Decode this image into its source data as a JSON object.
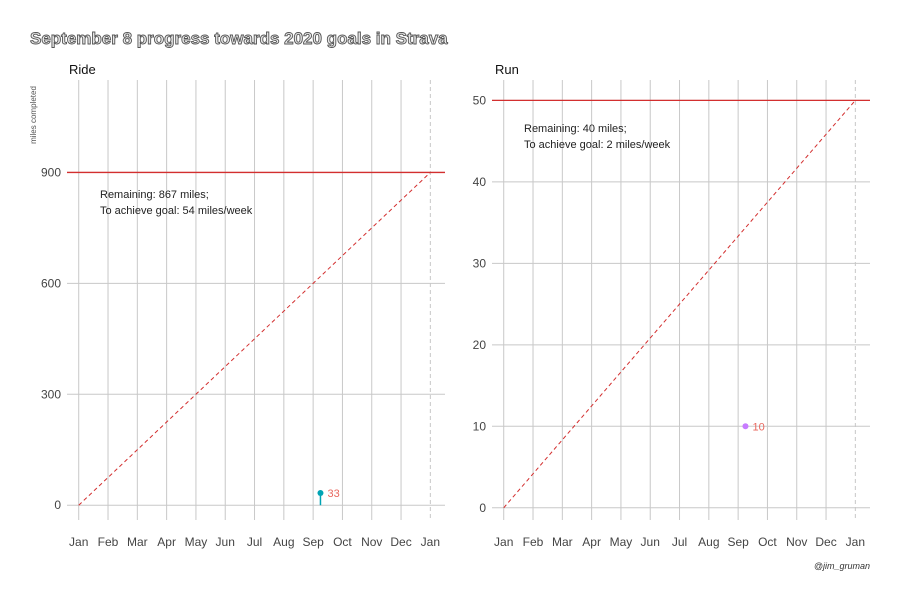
{
  "title": "September  8 progress towards 2020 goals in Strava",
  "caption": "@jim_gruman",
  "colors": {
    "goal_line": "#d32f2f",
    "ride_point": "#00a3b4",
    "run_point": "#c77cff",
    "point_label": "#e8675e",
    "grid": "#c8c8c8"
  },
  "chart_data": [
    {
      "type": "line",
      "panel_title": "Ride",
      "ylabel": "miles completed",
      "xlabel": "",
      "x_ticks": [
        "Jan",
        "Feb",
        "Mar",
        "Apr",
        "May",
        "Jun",
        "Jul",
        "Aug",
        "Sep",
        "Oct",
        "Nov",
        "Dec",
        "Jan"
      ],
      "y_ticks": [
        0,
        300,
        600,
        900
      ],
      "ylim": [
        -40,
        1150
      ],
      "xlim": [
        -0.4,
        12.5
      ],
      "goal": 900,
      "target_line": {
        "x": [
          0,
          12
        ],
        "y": [
          0,
          900
        ]
      },
      "series": [
        {
          "x": [
            8.25,
            8.25
          ],
          "y": [
            0,
            33
          ]
        }
      ],
      "point": {
        "x": 8.25,
        "y": 33,
        "label": "33"
      },
      "annotation": [
        "Remaining: 867 miles;",
        "To achieve goal: 54 miles/week"
      ],
      "grid": true
    },
    {
      "type": "line",
      "panel_title": "Run",
      "ylabel": "",
      "xlabel": "",
      "x_ticks": [
        "Jan",
        "Feb",
        "Mar",
        "Apr",
        "May",
        "Jun",
        "Jul",
        "Aug",
        "Sep",
        "Oct",
        "Nov",
        "Dec",
        "Jan"
      ],
      "y_ticks": [
        0,
        10,
        20,
        30,
        40,
        50
      ],
      "ylim": [
        -1.5,
        52.5
      ],
      "xlim": [
        -0.4,
        12.5
      ],
      "goal": 50,
      "target_line": {
        "x": [
          0,
          12
        ],
        "y": [
          0,
          50
        ]
      },
      "series": [
        {
          "x": [
            8.25,
            8.25
          ],
          "y": [
            9.8,
            10
          ]
        }
      ],
      "point": {
        "x": 8.25,
        "y": 10,
        "label": "10"
      },
      "annotation": [
        "Remaining: 40 miles;",
        "To achieve goal: 2 miles/week"
      ],
      "grid": true
    }
  ]
}
